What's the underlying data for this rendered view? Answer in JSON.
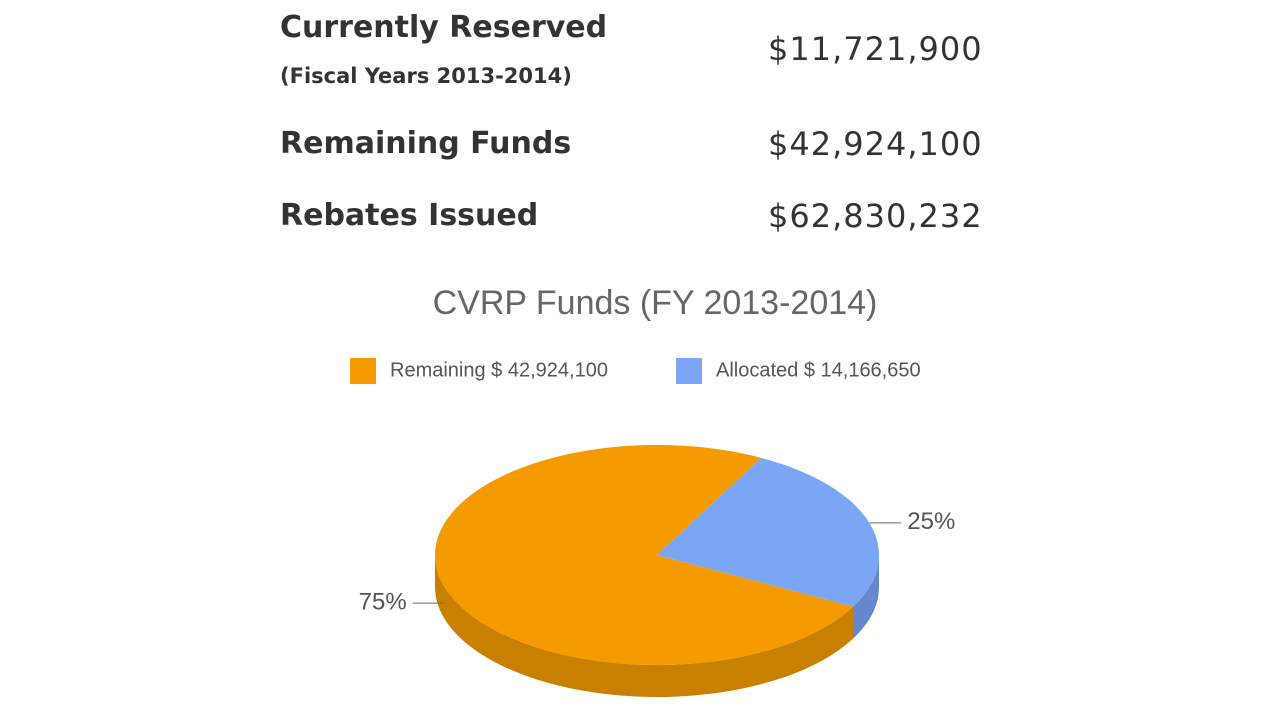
{
  "stats": {
    "rows": [
      {
        "label": "Currently Reserved",
        "note": "(Fiscal Years 2013-2014)",
        "value": "$11,721,900"
      },
      {
        "label": "Remaining Funds",
        "value": "$42,924,100"
      },
      {
        "label": "Rebates Issued",
        "value": "$62,830,232"
      }
    ]
  },
  "chart_data": {
    "type": "pie",
    "title": "CVRP Funds (FY 2013-2014)",
    "categories": [
      "Remaining $ 42,924,100",
      "Allocated $ 14,166,650"
    ],
    "values": [
      75,
      25
    ],
    "value_labels": [
      "75%",
      "25%"
    ],
    "colors": [
      "#f59b00",
      "#7aa6f5"
    ],
    "legend": "top"
  }
}
